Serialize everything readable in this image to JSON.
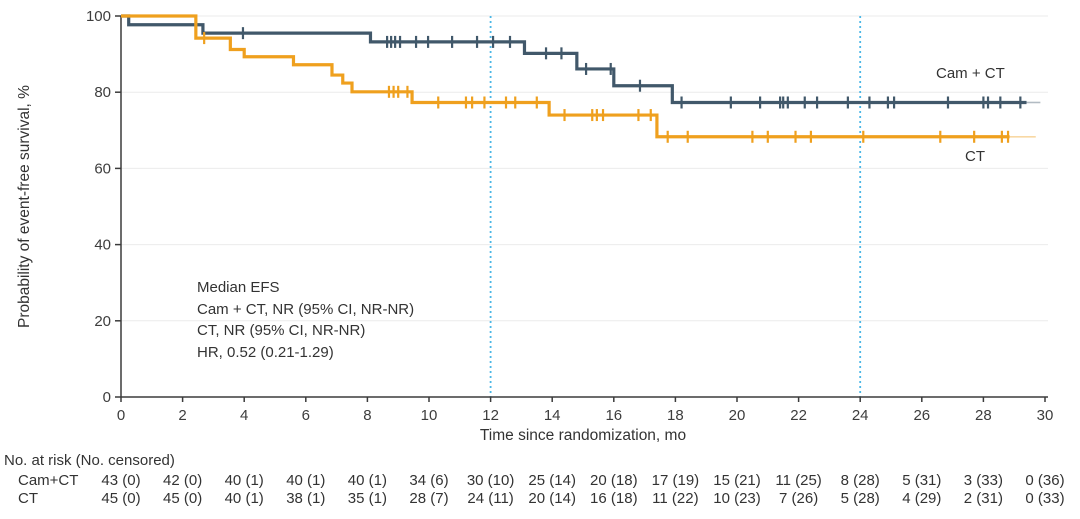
{
  "figure": {
    "annotation": {
      "lines": [
        "Median EFS",
        "Cam + CT, NR (95% CI, NR-NR)",
        "CT, NR (95% CI, NR-NR)",
        "HR, 0.52 (0.21-1.29)"
      ]
    }
  },
  "chart_data": {
    "type": "line",
    "subtype": "kaplan-meier-step-survival",
    "title": "",
    "xlabel": "Time since randomization, mo",
    "ylabel": "Probability of event-free survival, %",
    "xlim": [
      0,
      30
    ],
    "ylim": [
      0,
      100
    ],
    "xticks": [
      0,
      2,
      4,
      6,
      8,
      10,
      12,
      14,
      16,
      18,
      20,
      22,
      24,
      26,
      28,
      30
    ],
    "yticks": [
      0,
      20,
      40,
      60,
      80,
      100
    ],
    "grid": "horizontal",
    "grid_color": "#ebebeb",
    "axis_color": "#3b3b3b",
    "reference_lines_x": [
      12,
      24
    ],
    "reference_line_color": "#4bb7e6",
    "legend_position": "end-of-line-labels",
    "series": [
      {
        "name": "Cam + CT",
        "color": "#41586a",
        "steps": [
          [
            0,
            100
          ],
          [
            0.25,
            97.7
          ],
          [
            2.66,
            95.5
          ],
          [
            8.1,
            93.2
          ],
          [
            13.1,
            90.2
          ],
          [
            14.8,
            86.1
          ],
          [
            16.0,
            81.7
          ],
          [
            17.9,
            77.3
          ]
        ],
        "end": 29.4,
        "tail_end": 29.85,
        "censors": [
          [
            3.96,
            95.5
          ],
          [
            8.64,
            93.2
          ],
          [
            8.77,
            93.2
          ],
          [
            8.9,
            93.2
          ],
          [
            9.06,
            93.2
          ],
          [
            9.58,
            93.2
          ],
          [
            9.97,
            93.2
          ],
          [
            10.75,
            93.2
          ],
          [
            11.56,
            93.2
          ],
          [
            12.08,
            93.2
          ],
          [
            12.63,
            93.2
          ],
          [
            13.8,
            90.2
          ],
          [
            14.3,
            90.2
          ],
          [
            15.1,
            86.1
          ],
          [
            15.9,
            86.1
          ],
          [
            16.85,
            81.7
          ],
          [
            18.2,
            77.3
          ],
          [
            19.8,
            77.3
          ],
          [
            20.75,
            77.3
          ],
          [
            21.4,
            77.3
          ],
          [
            21.5,
            77.3
          ],
          [
            21.65,
            77.3
          ],
          [
            22.2,
            77.3
          ],
          [
            22.6,
            77.3
          ],
          [
            23.6,
            77.3
          ],
          [
            24.3,
            77.3
          ],
          [
            24.9,
            77.3
          ],
          [
            25.1,
            77.3
          ],
          [
            26.85,
            77.3
          ],
          [
            28.0,
            77.3
          ],
          [
            28.15,
            77.3
          ],
          [
            28.55,
            77.3
          ],
          [
            29.2,
            77.3
          ]
        ]
      },
      {
        "name": "CT",
        "color": "#efa01e",
        "steps": [
          [
            0,
            100
          ],
          [
            2.43,
            94.2
          ],
          [
            3.55,
            91.2
          ],
          [
            4.0,
            89.3
          ],
          [
            5.6,
            87.2
          ],
          [
            6.85,
            84.5
          ],
          [
            7.2,
            82.4
          ],
          [
            7.5,
            80.1
          ],
          [
            9.45,
            77.3
          ],
          [
            13.9,
            74.0
          ],
          [
            17.4,
            68.3
          ]
        ],
        "end": 28.85,
        "tail_end": 29.7,
        "censors": [
          [
            2.7,
            94.2
          ],
          [
            8.7,
            80.1
          ],
          [
            8.85,
            80.1
          ],
          [
            9.0,
            80.1
          ],
          [
            9.3,
            80.1
          ],
          [
            10.3,
            77.3
          ],
          [
            11.2,
            77.3
          ],
          [
            11.4,
            77.3
          ],
          [
            11.8,
            77.3
          ],
          [
            12.5,
            77.3
          ],
          [
            12.8,
            77.3
          ],
          [
            13.5,
            77.3
          ],
          [
            14.4,
            74.0
          ],
          [
            15.3,
            74.0
          ],
          [
            15.45,
            74.0
          ],
          [
            15.65,
            74.0
          ],
          [
            16.8,
            74.0
          ],
          [
            17.2,
            74.0
          ],
          [
            17.75,
            68.3
          ],
          [
            18.4,
            68.3
          ],
          [
            20.5,
            68.3
          ],
          [
            21.0,
            68.3
          ],
          [
            21.9,
            68.3
          ],
          [
            22.4,
            68.3
          ],
          [
            24.1,
            68.3
          ],
          [
            26.6,
            68.3
          ],
          [
            27.7,
            68.3
          ],
          [
            28.6,
            68.3
          ],
          [
            28.8,
            68.3
          ]
        ]
      }
    ]
  },
  "risk_table": {
    "header": "No. at risk (No. censored)",
    "months": [
      0,
      2,
      4,
      6,
      8,
      10,
      12,
      14,
      16,
      18,
      20,
      22,
      24,
      26,
      28,
      30
    ],
    "rows": [
      {
        "label": "Cam+CT",
        "values": [
          "43 (0)",
          "42 (0)",
          "40 (1)",
          "40 (1)",
          "40 (1)",
          "34 (6)",
          "30 (10)",
          "25 (14)",
          "20 (18)",
          "17 (19)",
          "15 (21)",
          "11 (25)",
          "8 (28)",
          "5 (31)",
          "3 (33)",
          "0 (36)"
        ]
      },
      {
        "label": "CT",
        "values": [
          "45 (0)",
          "45 (0)",
          "40 (1)",
          "38 (1)",
          "35 (1)",
          "28 (7)",
          "24 (11)",
          "20 (14)",
          "16 (18)",
          "11 (22)",
          "10 (23)",
          "7 (26)",
          "5 (28)",
          "4 (29)",
          "2 (31)",
          "0 (33)"
        ]
      }
    ]
  }
}
